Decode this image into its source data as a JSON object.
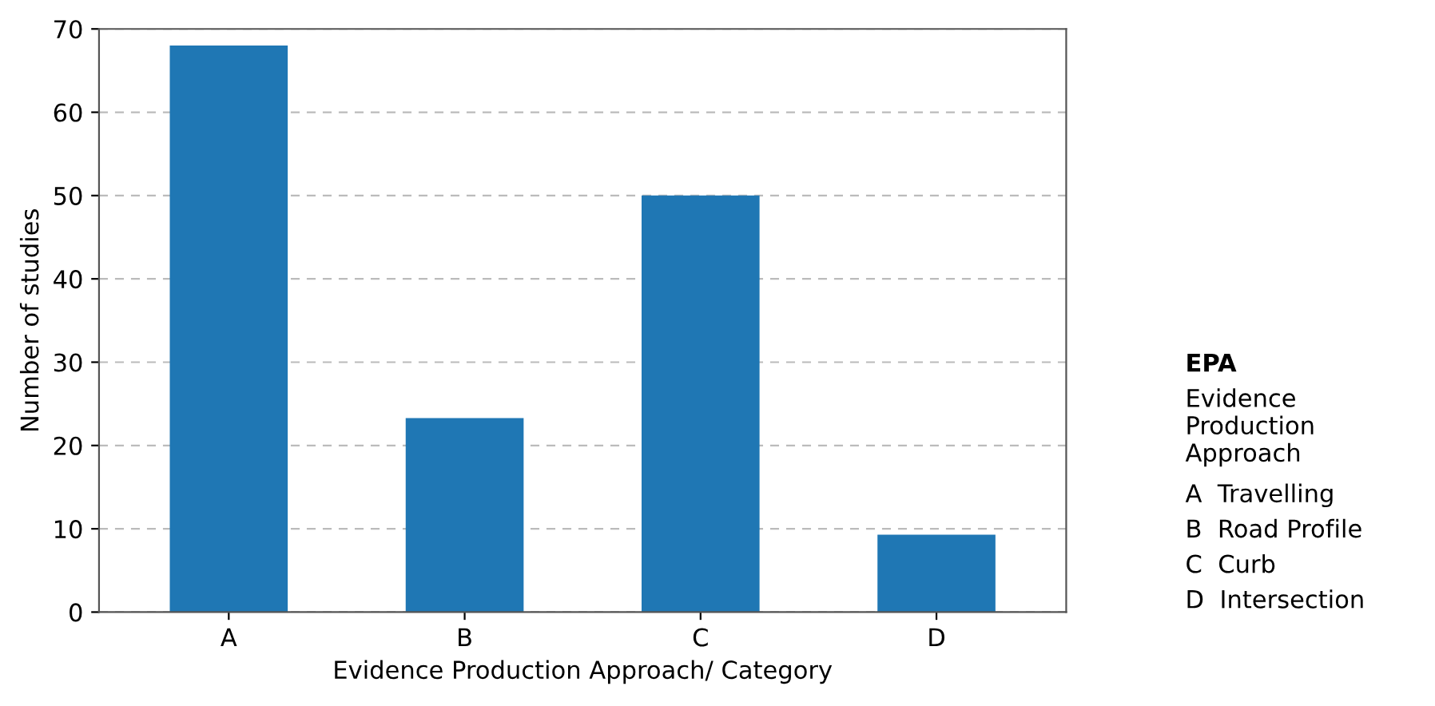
{
  "chart_data": {
    "type": "bar",
    "xlabel": "Evidence Production Approach/ Category",
    "ylabel": "Number of studies",
    "categories": [
      "A",
      "B",
      "C",
      "D"
    ],
    "values": [
      68,
      23.3,
      50,
      9.3
    ],
    "color": "#1f77b4",
    "ylim": [
      0,
      70
    ],
    "yticks": [
      0,
      10,
      20,
      30,
      40,
      50,
      60,
      70
    ],
    "grid": "y",
    "annotations": [
      "EPA",
      "Evidence Production Approach",
      "A  Travelling",
      "B  Road Profile",
      "C  Curb",
      "D  Intersection"
    ]
  }
}
